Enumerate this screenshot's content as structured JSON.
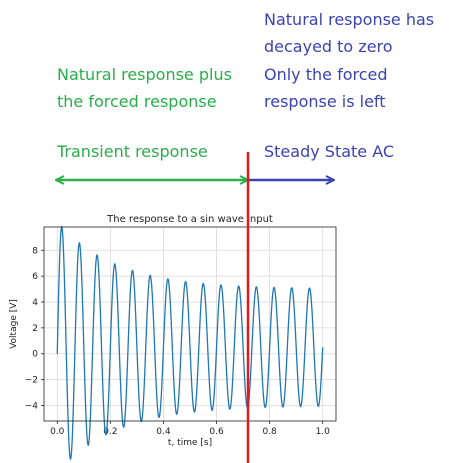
{
  "annotations": {
    "left_top": [
      "Natural response plus",
      "the forced response"
    ],
    "right_top": [
      "Natural response has",
      "decayed to zero"
    ],
    "right_mid": [
      "Only the forced",
      "response is left"
    ],
    "transient_label": "Transient response",
    "steady_label": "Steady State AC"
  },
  "colors": {
    "green": "#2aad4a",
    "blue": "#3b43b0",
    "divider": "#e31a1c",
    "series": "#1f77b4"
  },
  "chart_data": {
    "type": "line",
    "title": "The response to a sin wave input",
    "xlabel": "t, time [s]",
    "ylabel": "Voltage [V]",
    "xlim": [
      -0.05,
      1.05
    ],
    "ylim": [
      -5.2,
      9.8
    ],
    "xticks": [
      "0.0",
      "0.2",
      "0.4",
      "0.6",
      "0.8",
      "1.0"
    ],
    "xtick_values": [
      0.0,
      0.2,
      0.4,
      0.6,
      0.8,
      1.0
    ],
    "yticks": [
      "−4",
      "−2",
      "0",
      "2",
      "4",
      "6",
      "8"
    ],
    "ytick_values": [
      -4,
      -2,
      0,
      2,
      4,
      6,
      8
    ],
    "grid": true,
    "series": [
      {
        "model": "forced + decaying natural response",
        "frequency_hz": 15,
        "forced_amplitude": 4.5,
        "forced_offset": 0.5,
        "transient_amplitude": 5.2,
        "decay_time_constant_s": 0.22,
        "t_start": 0.0,
        "t_end": 1.0,
        "samples": 900
      }
    ],
    "divider_t": 0.72
  }
}
